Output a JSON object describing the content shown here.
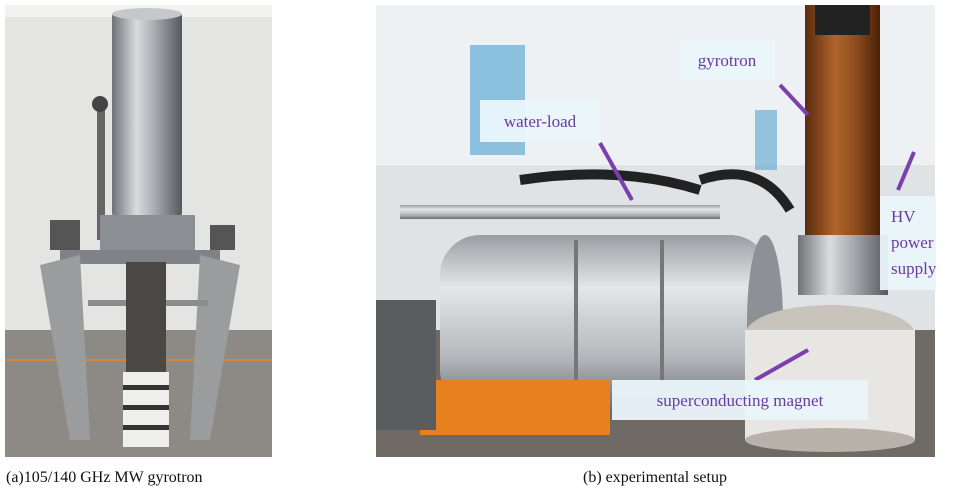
{
  "panels": [
    {
      "caption": "(a)105/140 GHz MW gyrotron"
    },
    {
      "caption": "(b) experimental setup",
      "labels": {
        "gyrotron": "gyrotron",
        "water_load": "water-load",
        "hv": [
          "HV",
          "power",
          "supply"
        ],
        "magnet": "superconducting magnet"
      }
    }
  ]
}
